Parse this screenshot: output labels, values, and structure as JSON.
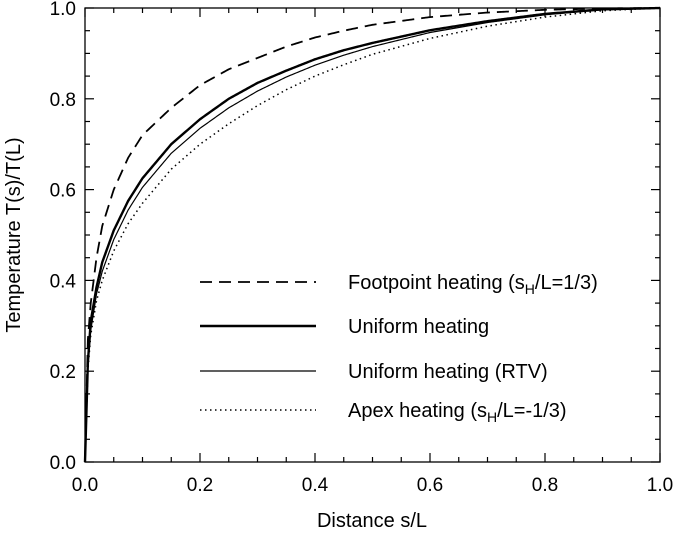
{
  "chart_data": {
    "type": "line",
    "title": "",
    "xlabel": "Distance s/L",
    "ylabel": "Temperature T(s)/T(L)",
    "xlim": [
      0.0,
      1.0
    ],
    "ylim": [
      0.0,
      1.0
    ],
    "grid": false,
    "legend_position": "lower-right",
    "x_ticks": [
      0.0,
      0.2,
      0.4,
      0.6,
      0.8,
      1.0
    ],
    "x_tick_labels": [
      "0.0",
      "0.2",
      "0.4",
      "0.6",
      "0.8",
      "1.0"
    ],
    "y_ticks": [
      0.0,
      0.2,
      0.4,
      0.6,
      0.8,
      1.0
    ],
    "y_tick_labels": [
      "0.0",
      "0.2",
      "0.4",
      "0.6",
      "0.8",
      "1.0"
    ],
    "line_color": "#000000",
    "series": [
      {
        "name": "Footpoint heating (s_H/L=1/3)",
        "legend_main": "Footpoint heating (s",
        "legend_sub": "H",
        "legend_tail": "/L=1/3)",
        "style": "dashed",
        "x": [
          0.0,
          0.005,
          0.01,
          0.02,
          0.03,
          0.05,
          0.075,
          0.1,
          0.15,
          0.2,
          0.25,
          0.3,
          0.35,
          0.4,
          0.45,
          0.5,
          0.6,
          0.7,
          0.8,
          0.9,
          1.0
        ],
        "y": [
          0.0,
          0.27,
          0.35,
          0.45,
          0.52,
          0.6,
          0.67,
          0.72,
          0.78,
          0.83,
          0.865,
          0.89,
          0.915,
          0.935,
          0.95,
          0.963,
          0.98,
          0.99,
          0.996,
          0.999,
          1.0
        ]
      },
      {
        "name": "Uniform heating",
        "legend_main": "Uniform heating",
        "legend_sub": "",
        "legend_tail": "",
        "style": "thick",
        "x": [
          0.0,
          0.005,
          0.01,
          0.02,
          0.03,
          0.05,
          0.075,
          0.1,
          0.15,
          0.2,
          0.25,
          0.3,
          0.35,
          0.4,
          0.45,
          0.5,
          0.6,
          0.7,
          0.8,
          0.9,
          1.0
        ],
        "y": [
          0.0,
          0.22,
          0.31,
          0.385,
          0.44,
          0.51,
          0.575,
          0.625,
          0.7,
          0.755,
          0.8,
          0.835,
          0.862,
          0.887,
          0.907,
          0.923,
          0.951,
          0.971,
          0.987,
          0.997,
          1.0
        ]
      },
      {
        "name": "Uniform heating (RTV)",
        "legend_main": "Uniform heating (RTV)",
        "legend_sub": "",
        "legend_tail": "",
        "style": "thin",
        "x": [
          0.0,
          0.005,
          0.01,
          0.02,
          0.03,
          0.05,
          0.075,
          0.1,
          0.15,
          0.2,
          0.25,
          0.3,
          0.35,
          0.4,
          0.45,
          0.5,
          0.6,
          0.7,
          0.8,
          0.9,
          1.0
        ],
        "y": [
          0.0,
          0.21,
          0.29,
          0.37,
          0.42,
          0.49,
          0.555,
          0.605,
          0.68,
          0.735,
          0.78,
          0.817,
          0.848,
          0.874,
          0.896,
          0.915,
          0.946,
          0.968,
          0.985,
          0.996,
          1.0
        ]
      },
      {
        "name": "Apex heating (s_H/L=-1/3)",
        "legend_main": "Apex heating (s",
        "legend_sub": "H",
        "legend_tail": "/L=-1/3)",
        "style": "dotted",
        "x": [
          0.0,
          0.005,
          0.01,
          0.02,
          0.03,
          0.05,
          0.075,
          0.1,
          0.15,
          0.2,
          0.25,
          0.3,
          0.35,
          0.4,
          0.45,
          0.5,
          0.6,
          0.7,
          0.8,
          0.9,
          1.0
        ],
        "y": [
          0.0,
          0.2,
          0.28,
          0.355,
          0.4,
          0.465,
          0.525,
          0.57,
          0.645,
          0.7,
          0.745,
          0.785,
          0.82,
          0.85,
          0.875,
          0.898,
          0.933,
          0.96,
          0.98,
          0.994,
          1.0
        ]
      }
    ]
  }
}
